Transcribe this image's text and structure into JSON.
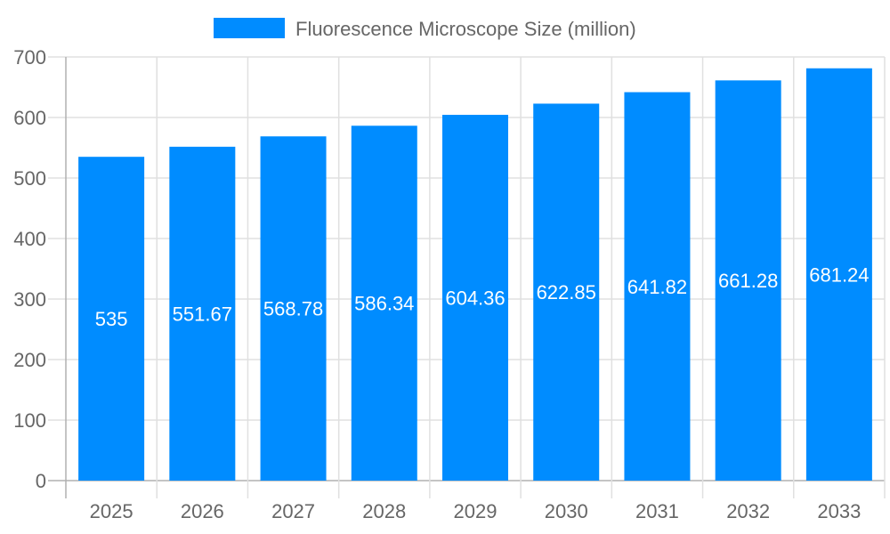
{
  "chart_data": {
    "type": "bar",
    "title": "",
    "xlabel": "",
    "ylabel": "",
    "categories": [
      "2025",
      "2026",
      "2027",
      "2028",
      "2029",
      "2030",
      "2031",
      "2032",
      "2033"
    ],
    "series": [
      {
        "name": "Fluorescence Microscope Size (million)",
        "values": [
          535,
          551.67,
          568.78,
          586.34,
          604.36,
          622.85,
          641.82,
          661.28,
          681.24
        ],
        "color": "#008cff"
      }
    ],
    "ylim": [
      0,
      700
    ],
    "yticks": [
      0,
      100,
      200,
      300,
      400,
      500,
      600,
      700
    ],
    "grid": true,
    "legend": "top",
    "data_labels": true
  }
}
